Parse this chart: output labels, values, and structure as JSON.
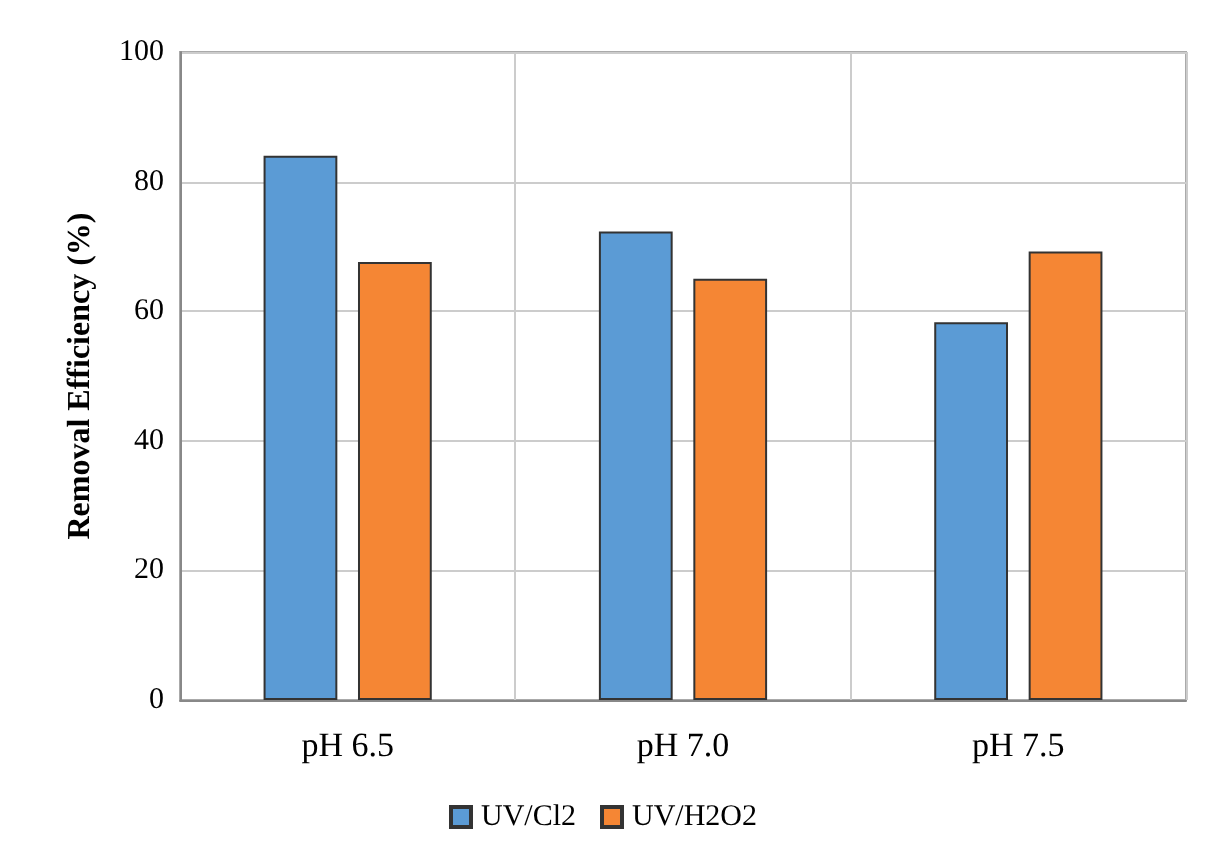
{
  "chart_data": {
    "type": "bar",
    "ylabel": "Removal Efficiency (%)",
    "categories": [
      "pH 6.5",
      "pH 7.0",
      "pH 7.5"
    ],
    "series": [
      {
        "name": "UV/Cl2",
        "color": "#5b9bd5",
        "values": [
          84,
          72.3,
          58.3
        ]
      },
      {
        "name": "UV/H2O2",
        "color": "#f58634",
        "values": [
          67.6,
          65,
          69.2
        ]
      }
    ],
    "ylim": [
      0,
      100
    ],
    "yticks": [
      0,
      20,
      40,
      60,
      80,
      100
    ],
    "grid": true,
    "legend": "bottom"
  }
}
